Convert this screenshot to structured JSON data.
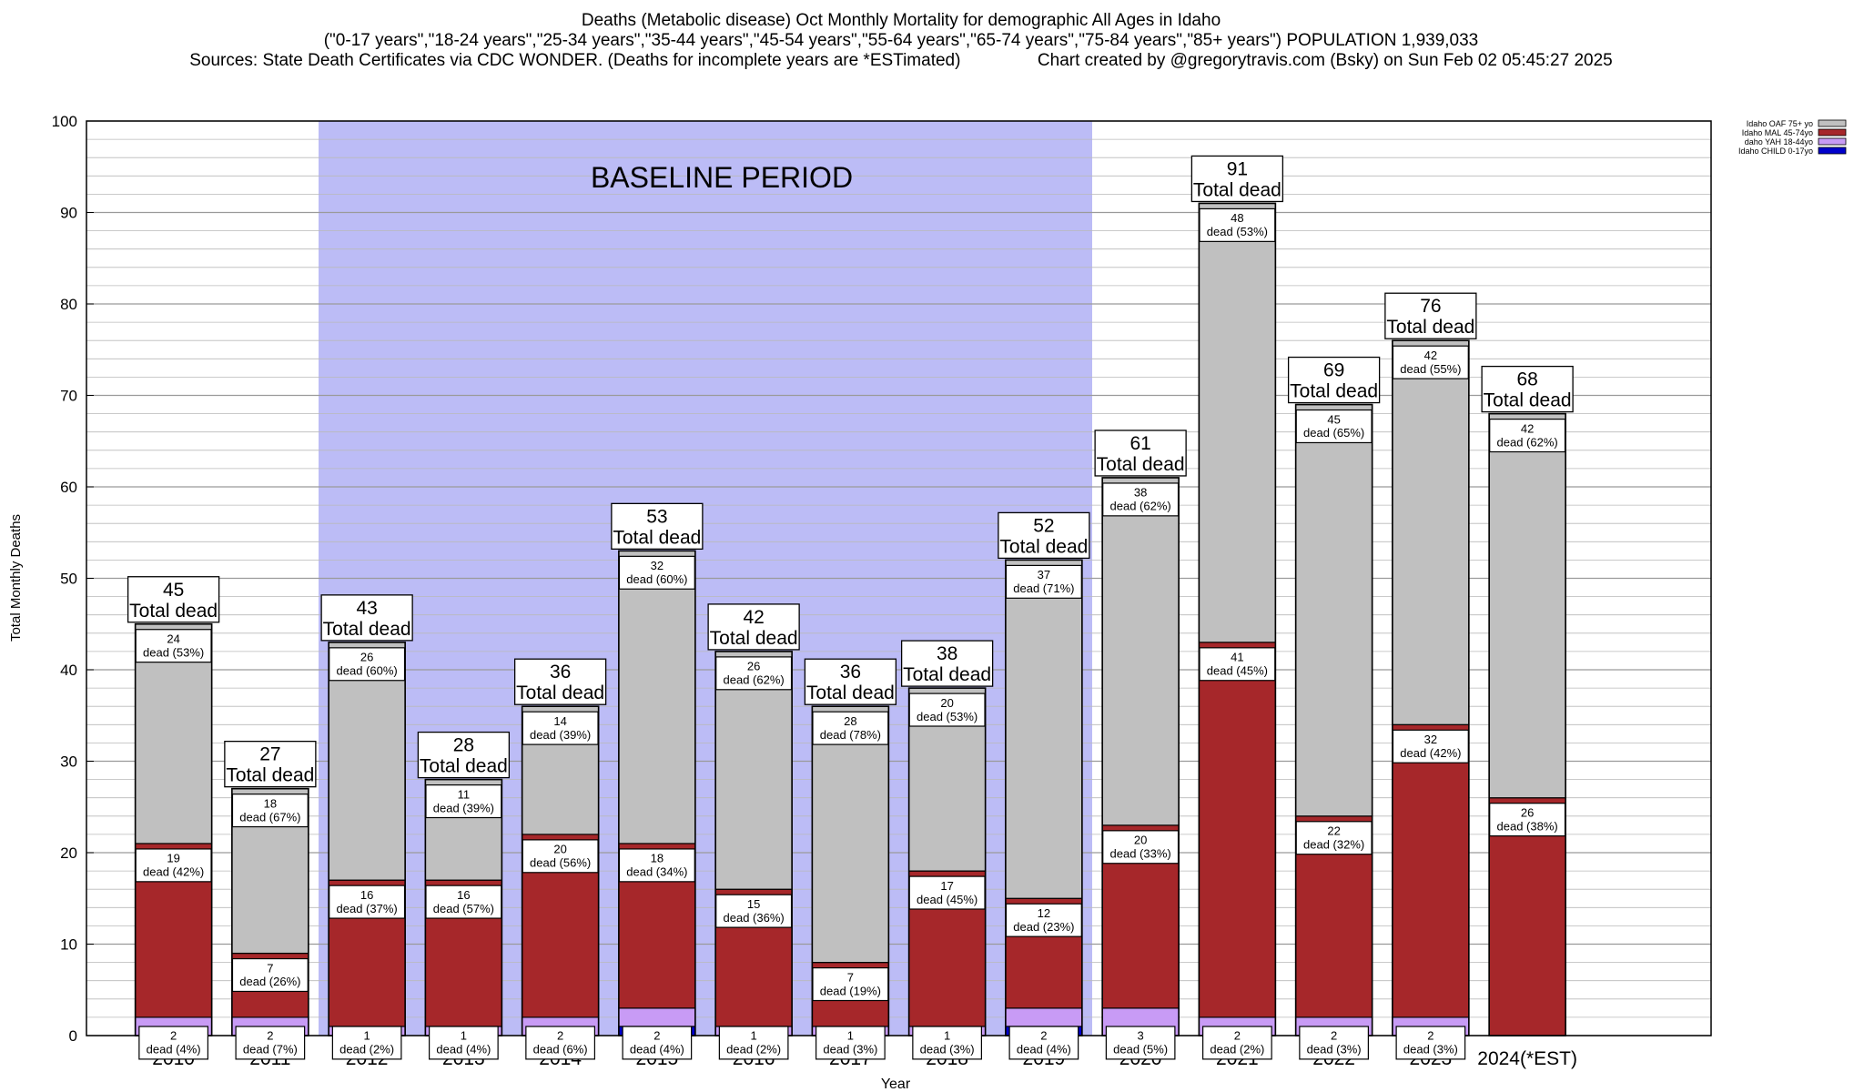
{
  "header": {
    "title": "Deaths (Metabolic disease) Oct Monthly Mortality for demographic All Ages in Idaho",
    "subtitle": "(\"0-17 years\",\"18-24 years\",\"25-34 years\",\"35-44 years\",\"45-54 years\",\"55-64 years\",\"65-74 years\",\"75-84 years\",\"85+ years\") POPULATION 1,939,033",
    "sources": "Sources: State Death Certificates via CDC WONDER. (Deaths for incomplete years are *ESTimated)",
    "credit": "Chart created by @gregorytravis.com (Bsky) on Sun Feb 02 05:45:27 2025"
  },
  "chart_data": {
    "type": "bar",
    "stacked": true,
    "xlabel": "Year",
    "ylabel": "Total Monthly Deaths",
    "ylim": [
      0,
      100
    ],
    "yticks": [
      0,
      10,
      20,
      30,
      40,
      50,
      60,
      70,
      80,
      90,
      100
    ],
    "grid": true,
    "legend_position": "top-right",
    "categories": [
      "2010",
      "2011",
      "2012",
      "2013",
      "2014",
      "2015",
      "2016",
      "2017",
      "2018",
      "2019",
      "2020",
      "2021",
      "2022",
      "2023",
      "2024(*EST)"
    ],
    "baseline": {
      "label": "BASELINE PERIOD",
      "from": "2012",
      "to": "2019",
      "color": "#bcbcf6"
    },
    "series": [
      {
        "name": "Idaho CHILD 0-17yo",
        "color": "#0000cc",
        "values": [
          0,
          0,
          0,
          0,
          0,
          1,
          0,
          0,
          0,
          1,
          0,
          0,
          0,
          0,
          0
        ],
        "labels": []
      },
      {
        "name": "daho YAH 18-44yo",
        "color": "#c89bf5",
        "values": [
          2,
          2,
          1,
          1,
          2,
          2,
          1,
          1,
          1,
          2,
          3,
          2,
          2,
          2,
          0
        ],
        "labels": [
          "2\ndead (4%)",
          "2\ndead (7%)",
          "1\ndead (2%)",
          "1\ndead (4%)",
          "2\ndead (6%)",
          "2\ndead (4%)",
          "1\ndead (2%)",
          "1\ndead (3%)",
          "1\ndead (3%)",
          "2\ndead (4%)",
          "3\ndead (5%)",
          "2\ndead (2%)",
          "2\ndead (3%)",
          "2\ndead (3%)",
          ""
        ]
      },
      {
        "name": "Idaho MAL 45-74yo",
        "color": "#a6272a",
        "values": [
          19,
          7,
          16,
          16,
          20,
          18,
          15,
          7,
          17,
          12,
          20,
          41,
          22,
          32,
          26
        ],
        "labels": [
          "19\ndead (42%)",
          "7\ndead (26%)",
          "16\ndead (37%)",
          "16\ndead (57%)",
          "20\ndead (56%)",
          "18\ndead (34%)",
          "15\ndead (36%)",
          "7\ndead (19%)",
          "17\ndead (45%)",
          "12\ndead (23%)",
          "20\ndead (33%)",
          "41\ndead (45%)",
          "22\ndead (32%)",
          "32\ndead (42%)",
          "26\ndead (38%)"
        ]
      },
      {
        "name": "Idaho OAF 75+ yo",
        "color": "#c0c0c0",
        "values": [
          24,
          18,
          26,
          11,
          14,
          32,
          26,
          28,
          20,
          37,
          38,
          48,
          45,
          42,
          42
        ],
        "labels": [
          "24\ndead (53%)",
          "18\ndead (67%)",
          "26\ndead (60%)",
          "11\ndead (39%)",
          "14\ndead (39%)",
          "32\ndead (60%)",
          "26\ndead (62%)",
          "28\ndead (78%)",
          "20\ndead (53%)",
          "37\ndead (71%)",
          "38\ndead (62%)",
          "48\ndead (53%)",
          "45\ndead (65%)",
          "42\ndead (55%)",
          "42\ndead (62%)"
        ]
      }
    ],
    "totals": [
      45,
      27,
      43,
      28,
      36,
      53,
      42,
      36,
      38,
      52,
      61,
      91,
      69,
      76,
      68
    ],
    "total_label": "Total dead",
    "legend_order": [
      "Idaho OAF 75+ yo",
      "Idaho MAL 45-74yo",
      "daho YAH 18-44yo",
      "Idaho CHILD 0-17yo"
    ]
  }
}
